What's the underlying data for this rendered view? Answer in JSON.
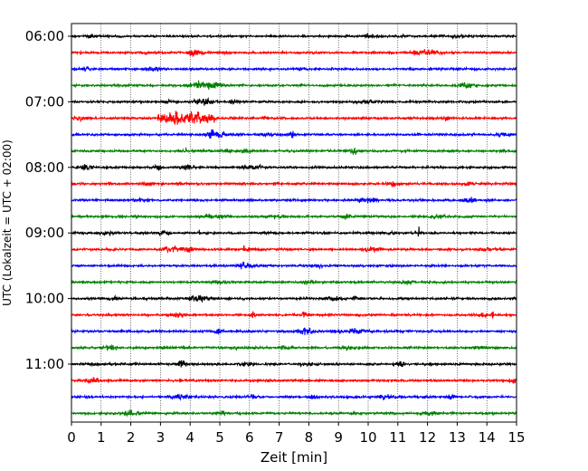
{
  "chart_data": {
    "type": "line",
    "title": "",
    "xlabel": "Zeit  [min]",
    "ylabel": "UTC (Lokalzeit = UTC + 02:00)",
    "xlim": [
      0,
      15
    ],
    "xticks": [
      0,
      1,
      2,
      3,
      4,
      5,
      6,
      7,
      8,
      9,
      10,
      11,
      12,
      13,
      14,
      15
    ],
    "x_grid": true,
    "y_tick_labels": [
      "06:00",
      "07:00",
      "08:00",
      "09:00",
      "10:00",
      "11:00"
    ],
    "trace_start_times_utc": [
      "06:00",
      "06:15",
      "06:30",
      "06:45",
      "07:00",
      "07:15",
      "07:30",
      "07:45",
      "08:00",
      "08:15",
      "08:30",
      "08:45",
      "09:00",
      "09:15",
      "09:30",
      "09:45",
      "10:00",
      "10:15",
      "10:30",
      "10:45",
      "11:00",
      "11:15",
      "11:30",
      "11:45"
    ],
    "trace_colors": [
      "#000000",
      "#ff0000",
      "#0000ff",
      "#008000"
    ],
    "events": [
      {
        "trace": 5,
        "x_start": 2.9,
        "x_end": 4.9,
        "peak_x": 3.9
      },
      {
        "trace": 12,
        "x": 4.3
      },
      {
        "trace": 12,
        "x": 11.7
      },
      {
        "trace": 13,
        "x": 5.8
      },
      {
        "trace": 17,
        "x": 14.2
      }
    ]
  }
}
